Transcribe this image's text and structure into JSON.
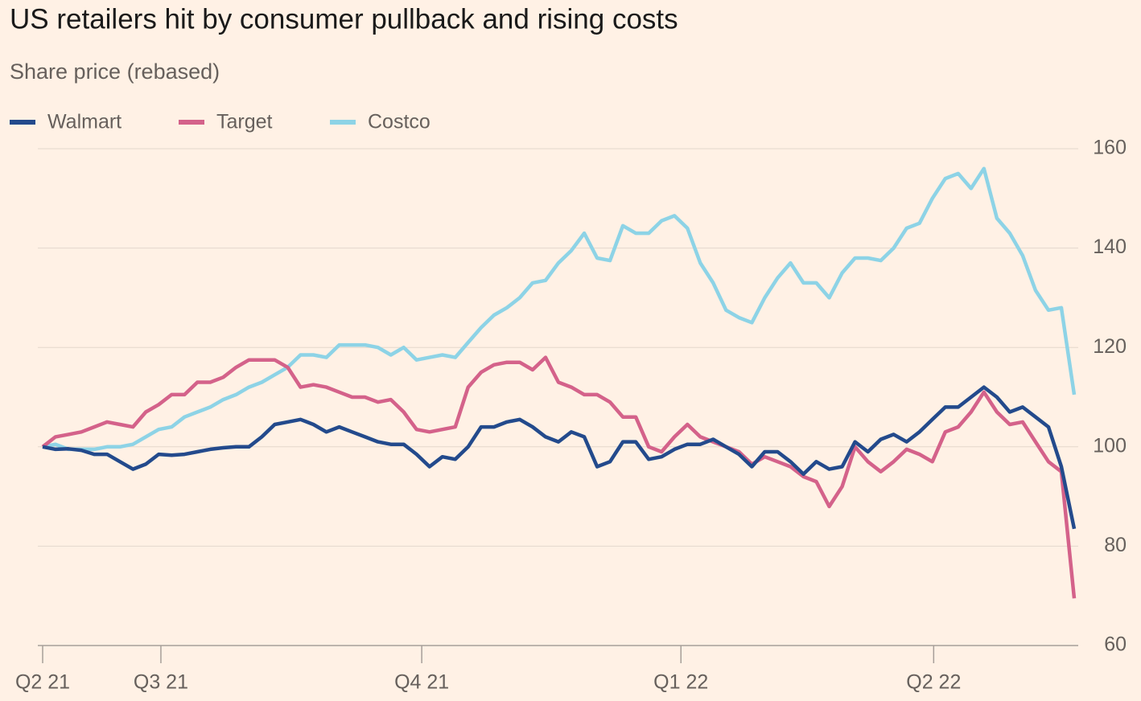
{
  "chart_data": {
    "type": "line",
    "title": "US retailers hit by consumer pullback and rising costs",
    "subtitle": "Share price (rebased)",
    "x": [
      0,
      1,
      2,
      3,
      4,
      5,
      6,
      7,
      8,
      9,
      10,
      11,
      12,
      13,
      14,
      15,
      16,
      17,
      18,
      19,
      20,
      21,
      22,
      23,
      24,
      25,
      26,
      27,
      28,
      29,
      30,
      31,
      32,
      33,
      34,
      35,
      36,
      37,
      38,
      39,
      40,
      41,
      42,
      43,
      44,
      45,
      46,
      47,
      48,
      49,
      50,
      51,
      52,
      53,
      54,
      55,
      56,
      57,
      58,
      59,
      60,
      61,
      62,
      63,
      64,
      65,
      66,
      67,
      68,
      69,
      70,
      71,
      72,
      73,
      74,
      75,
      76,
      77,
      78,
      79,
      80
    ],
    "xlim": [
      0,
      80
    ],
    "xticks": [
      {
        "value": 0,
        "label": "Q2 21"
      },
      {
        "value": 9.17,
        "label": "Q3 21"
      },
      {
        "value": 29.4,
        "label": "Q4 21"
      },
      {
        "value": 49.5,
        "label": "Q1 22"
      },
      {
        "value": 69.1,
        "label": "Q2 22"
      }
    ],
    "ylim": [
      60,
      160
    ],
    "yticks": [
      60,
      80,
      100,
      120,
      140,
      160
    ],
    "grid": true,
    "series": [
      {
        "name": "Walmart",
        "color": "#234a8c",
        "values": [
          100,
          99.5,
          99.6,
          99.3,
          98.5,
          98.5,
          97,
          95.5,
          96.5,
          98.5,
          98.3,
          98.5,
          99,
          99.5,
          99.8,
          100,
          100,
          102,
          104.5,
          105,
          105.5,
          104.5,
          103,
          104,
          103,
          102,
          101,
          100.5,
          100.5,
          98.5,
          96,
          98,
          97.5,
          100,
          104,
          104,
          105,
          105.5,
          104,
          102,
          101,
          103,
          102,
          96,
          97,
          101,
          101,
          97.5,
          98,
          99.5,
          100.5,
          100.5,
          101.5,
          100,
          98.5,
          96,
          99,
          99,
          97,
          94.5,
          97,
          95.5,
          96,
          101,
          99,
          101.5,
          102.5,
          101,
          103,
          105.5,
          108,
          108,
          110,
          112,
          110,
          107,
          108,
          106,
          104,
          96,
          83.5
        ]
      },
      {
        "name": "Target",
        "color": "#d4628a",
        "values": [
          100,
          102,
          102.5,
          103,
          104,
          105,
          104.5,
          104,
          107,
          108.5,
          110.5,
          110.5,
          113,
          113,
          114,
          116,
          117.5,
          117.5,
          117.5,
          116,
          112,
          112.5,
          112,
          111,
          110,
          110,
          109,
          109.5,
          107,
          103.5,
          103,
          103.5,
          104,
          112,
          115,
          116.5,
          117,
          117,
          115.5,
          118,
          113,
          112,
          110.5,
          110.5,
          109,
          106,
          106,
          100,
          99,
          102,
          104.5,
          102,
          101,
          100,
          99,
          96.5,
          98,
          97,
          96,
          94,
          93,
          88,
          92,
          100,
          97,
          95,
          97,
          99.5,
          98.5,
          97,
          103,
          104,
          107,
          111,
          107,
          104.5,
          105,
          101,
          97,
          95,
          69.5
        ]
      },
      {
        "name": "Costco",
        "color": "#8dd3e6",
        "values": [
          100,
          100.5,
          99.5,
          99.5,
          99.5,
          100,
          100,
          100.5,
          102,
          103.5,
          104,
          106,
          107,
          108,
          109.5,
          110.5,
          112,
          113,
          114.5,
          116,
          118.5,
          118.5,
          118,
          120.5,
          120.5,
          120.5,
          120,
          118.5,
          120,
          117.5,
          118,
          118.5,
          118,
          121,
          124,
          126.5,
          128,
          130,
          133,
          133.5,
          137,
          139.5,
          143,
          138,
          137.5,
          144.5,
          143,
          143,
          145.5,
          146.5,
          144,
          137,
          133,
          127.5,
          126,
          125,
          130,
          134,
          137,
          133,
          133,
          130,
          135,
          138,
          138,
          137.5,
          140,
          144,
          145,
          150,
          154,
          155,
          152,
          156,
          146,
          143,
          138.5,
          131.5,
          127.5,
          128,
          110.5
        ]
      }
    ]
  }
}
